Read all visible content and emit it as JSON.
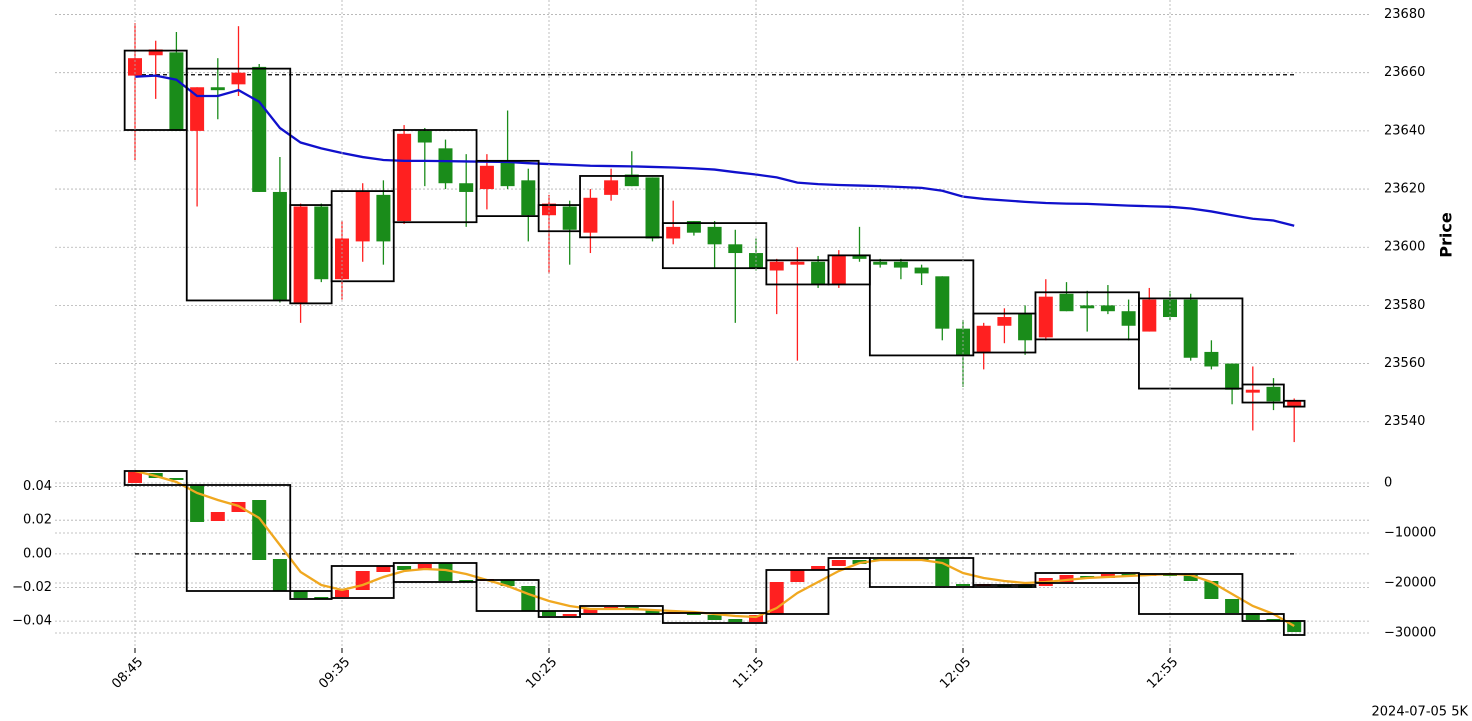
{
  "chart_data": [
    {
      "type": "candlestick",
      "ylabel": "Price",
      "y_axis_side": "right",
      "grid": true,
      "ylim": [
        23532,
        23685
      ],
      "yticks": [
        23540,
        23560,
        23580,
        23600,
        23620,
        23640,
        23660,
        23680
      ],
      "up_color": "#ff2020",
      "down_color": "#1a8c1a",
      "box_color": "#000000",
      "hline": {
        "value": 23659.3,
        "axis": "y"
      },
      "candles": {
        "open": [
          23659,
          23666,
          23667,
          23640,
          23655,
          23656,
          23662,
          23619,
          23581,
          23614,
          23589,
          23602,
          23618,
          23609,
          23640,
          23634,
          23622,
          23620,
          23629,
          23623,
          23611,
          23614,
          23605,
          23618,
          23625,
          23624,
          23603,
          23609,
          23607,
          23601,
          23598,
          23592,
          23594,
          23595,
          23587,
          23597,
          23595,
          23595,
          23593,
          23590,
          23572,
          23564,
          23573,
          23577,
          23569,
          23584,
          23580,
          23580,
          23578,
          23571,
          23582,
          23582,
          23564,
          23560,
          23550,
          23552,
          23545
        ],
        "high": [
          23677,
          23671,
          23674,
          23655,
          23665,
          23676,
          23663,
          23631,
          23615,
          23615,
          23609,
          23622,
          23623,
          23642,
          23641,
          23637,
          23632,
          23632,
          23647,
          23627,
          23618,
          23616,
          23620,
          23627,
          23633,
          23624,
          23616,
          23609,
          23609,
          23606,
          23603,
          23596,
          23600,
          23597,
          23599,
          23607,
          23596,
          23596,
          23594,
          23590,
          23575,
          23574,
          23579,
          23580,
          23589,
          23588,
          23585,
          23587,
          23582,
          23586,
          23585,
          23584,
          23568,
          23560,
          23559,
          23555,
          23548
        ],
        "low": [
          23630,
          23651,
          23640,
          23614,
          23644,
          23652,
          23619,
          23581,
          23574,
          23588,
          23582,
          23595,
          23594,
          23608,
          23621,
          23620,
          23607,
          23613,
          23620,
          23602,
          23591,
          23594,
          23598,
          23616,
          23621,
          23602,
          23601,
          23604,
          23593,
          23574,
          23592,
          23577,
          23561,
          23586,
          23586,
          23595,
          23593,
          23589,
          23587,
          23568,
          23552,
          23558,
          23567,
          23563,
          23568,
          23578,
          23571,
          23577,
          23568,
          23571,
          23575,
          23561,
          23558,
          23546,
          23537,
          23544,
          23533
        ],
        "close": [
          23665,
          23668,
          23640,
          23655,
          23654,
          23660,
          23619,
          23582,
          23614,
          23589,
          23603,
          23619,
          23602,
          23639,
          23636,
          23622,
          23619,
          23628,
          23621,
          23611,
          23615,
          23606,
          23617,
          23623,
          23621,
          23603,
          23607,
          23605,
          23601,
          23598,
          23593,
          23595,
          23595,
          23587,
          23597,
          23596,
          23594,
          23593,
          23591,
          23572,
          23563,
          23573,
          23576,
          23568,
          23583,
          23578,
          23579,
          23578,
          23573,
          23582,
          23576,
          23562,
          23559,
          23551,
          23551,
          23547,
          23547
        ]
      },
      "lines": [
        {
          "color": "#1010cc",
          "values": [
            23658.6,
            23659,
            23657.6,
            23652,
            23652,
            23654,
            23650,
            23641,
            23636,
            23634,
            23632.4,
            23631,
            23630,
            23629.7,
            23629.7,
            23629.6,
            23629.5,
            23629.4,
            23629.3,
            23628.9,
            23628.6,
            23628.3,
            23628,
            23627.9,
            23627.8,
            23627.6,
            23627.4,
            23627.1,
            23626.7,
            23625.8,
            23625,
            23624,
            23622.2,
            23621.7,
            23621.4,
            23621.2,
            23621,
            23620.7,
            23620.4,
            23619.4,
            23617.4,
            23616.6,
            23616.1,
            23615.6,
            23615.2,
            23615,
            23614.9,
            23614.6,
            23614.3,
            23614.1,
            23613.9,
            23613.3,
            23612.3,
            23611,
            23609.8,
            23609.2,
            23607.4
          ]
        }
      ],
      "boxes": [
        {
          "first": 0,
          "last": 2,
          "high": 23667.6,
          "low": 23640.3
        },
        {
          "first": 3,
          "last": 7,
          "high": 23661.4,
          "low": 23581.7
        },
        {
          "first": 8,
          "last": 9,
          "high": 23614.5,
          "low": 23580.7
        },
        {
          "first": 10,
          "last": 12,
          "high": 23619.3,
          "low": 23588.3
        },
        {
          "first": 13,
          "last": 16,
          "high": 23640.3,
          "low": 23608.6
        },
        {
          "first": 17,
          "last": 19,
          "high": 23629.7,
          "low": 23610.7
        },
        {
          "first": 20,
          "last": 21,
          "high": 23614.5,
          "low": 23605.5
        },
        {
          "first": 22,
          "last": 25,
          "high": 23624.5,
          "low": 23603.4
        },
        {
          "first": 26,
          "last": 30,
          "high": 23608.3,
          "low": 23592.8
        },
        {
          "first": 31,
          "last": 33,
          "high": 23595.5,
          "low": 23587.2
        },
        {
          "first": 34,
          "last": 35,
          "high": 23597.2,
          "low": 23587.2
        },
        {
          "first": 36,
          "last": 40,
          "high": 23595.5,
          "low": 23562.8
        },
        {
          "first": 41,
          "last": 43,
          "high": 23577.2,
          "low": 23563.8
        },
        {
          "first": 44,
          "last": 48,
          "high": 23584.5,
          "low": 23568.3
        },
        {
          "first": 49,
          "last": 53,
          "high": 23582.4,
          "low": 23551.4
        },
        {
          "first": 54,
          "last": 55,
          "high": 23552.8,
          "low": 23546.6
        },
        {
          "first": 56,
          "last": 56,
          "high": 23547.2,
          "low": 23545.2
        }
      ]
    },
    {
      "type": "candlestick",
      "grid": true,
      "data_axis": "y2",
      "caption": "2024-07-05 5K",
      "categories": [
        "08:45",
        null,
        null,
        null,
        null,
        null,
        null,
        null,
        null,
        null,
        "09:35",
        null,
        null,
        null,
        null,
        null,
        null,
        null,
        null,
        null,
        "10:25",
        null,
        null,
        null,
        null,
        null,
        null,
        null,
        null,
        null,
        "11:15",
        null,
        null,
        null,
        null,
        null,
        null,
        null,
        null,
        null,
        "12:05",
        null,
        null,
        null,
        null,
        null,
        null,
        null,
        null,
        null,
        "12:55",
        null,
        null,
        null,
        null,
        null,
        null
      ],
      "ylim": [
        -0.056,
        0.057
      ],
      "yticks": [
        {
          "value": -0.04,
          "label": "−0.04"
        },
        {
          "value": -0.02,
          "label": "−0.02"
        },
        {
          "value": 0,
          "label": "0.00"
        },
        0.02,
        0.04
      ],
      "y2lim": [
        -33000,
        5000
      ],
      "y2ticks": [
        {
          "value": -30000,
          "label": "−30000"
        },
        {
          "value": -20000,
          "label": "−20000"
        },
        {
          "value": -10000,
          "label": "−10000"
        },
        0
      ],
      "up_color": "#ff2020",
      "down_color": "#1a8c1a",
      "box_color": "#000000",
      "hline": {
        "value": 0,
        "axis": "y"
      },
      "candles": {
        "open": [
          0,
          2000,
          1000,
          -400,
          -7600,
          -5800,
          -3400,
          -15200,
          -21600,
          -22800,
          -22800,
          -21400,
          -17800,
          -16600,
          -17400,
          -16000,
          -19400,
          -19600,
          -19400,
          -20600,
          -25600,
          -26600,
          -26000,
          -25400,
          -24800,
          -25400,
          -26200,
          -25800,
          -26400,
          -27200,
          -27800,
          -26200,
          -19800,
          -17400,
          -16600,
          -15400,
          -15200,
          -15600,
          -15200,
          -15200,
          -20200,
          -20600,
          -20400,
          -20400,
          -20600,
          -19800,
          -18600,
          -19000,
          -18200,
          -18600,
          -18200,
          -18400,
          -19600,
          -23200,
          -26000,
          -27200,
          -27600
        ],
        "close": [
          2200,
          1000,
          600,
          -7800,
          -5800,
          -3800,
          -15400,
          -21600,
          -23000,
          -23000,
          -21400,
          -17600,
          -16600,
          -17400,
          -16200,
          -19600,
          -19600,
          -19200,
          -20600,
          -25600,
          -26600,
          -26200,
          -25200,
          -24800,
          -25400,
          -26200,
          -25800,
          -26400,
          -27400,
          -27800,
          -26400,
          -19800,
          -17400,
          -16600,
          -15400,
          -16200,
          -15600,
          -15200,
          -15600,
          -20600,
          -20600,
          -20200,
          -20800,
          -21000,
          -19000,
          -18400,
          -19000,
          -18200,
          -18600,
          -18200,
          -18600,
          -19600,
          -23200,
          -26000,
          -27400,
          -27600,
          -29800
        ]
      },
      "lines": [
        {
          "color": "#f0a820",
          "values": [
            2400,
            1400,
            200,
            -2000,
            -3400,
            -4600,
            -7000,
            -12400,
            -17800,
            -20400,
            -21400,
            -20400,
            -18800,
            -17600,
            -17200,
            -17400,
            -18200,
            -19400,
            -20600,
            -22200,
            -23600,
            -24600,
            -25200,
            -25200,
            -25200,
            -25400,
            -25600,
            -25800,
            -26200,
            -26600,
            -26800,
            -25000,
            -22000,
            -19800,
            -17600,
            -16000,
            -15400,
            -15400,
            -15400,
            -16000,
            -18000,
            -19000,
            -19600,
            -20000,
            -19800,
            -19400,
            -19000,
            -18800,
            -18600,
            -18400,
            -18200,
            -18400,
            -19800,
            -22200,
            -24600,
            -26200,
            -28600
          ]
        }
      ],
      "boxes": [
        {
          "first": 0,
          "last": 2,
          "high": 2400,
          "low": -400
        },
        {
          "first": 3,
          "last": 7,
          "high": -400,
          "low": -21600
        },
        {
          "first": 8,
          "last": 9,
          "high": -21600,
          "low": -23200
        },
        {
          "first": 10,
          "last": 12,
          "high": -16600,
          "low": -23000
        },
        {
          "first": 13,
          "last": 16,
          "high": -16000,
          "low": -19800
        },
        {
          "first": 17,
          "last": 19,
          "high": -19400,
          "low": -25600
        },
        {
          "first": 20,
          "last": 21,
          "high": -25600,
          "low": -26800
        },
        {
          "first": 22,
          "last": 25,
          "high": -24600,
          "low": -26200
        },
        {
          "first": 26,
          "last": 30,
          "high": -26000,
          "low": -28000
        },
        {
          "first": 31,
          "last": 33,
          "high": -17400,
          "low": -26200
        },
        {
          "first": 34,
          "last": 35,
          "high": -15000,
          "low": -17200
        },
        {
          "first": 36,
          "last": 40,
          "high": -15000,
          "low": -20800
        },
        {
          "first": 41,
          "last": 43,
          "high": -20400,
          "low": -20800
        },
        {
          "first": 44,
          "last": 48,
          "high": -18000,
          "low": -20000
        },
        {
          "first": 49,
          "last": 53,
          "high": -18200,
          "low": -26200
        },
        {
          "first": 54,
          "last": 55,
          "high": -26200,
          "low": -27600
        },
        {
          "first": 56,
          "last": 56,
          "high": -27600,
          "low": -30400
        }
      ]
    }
  ]
}
